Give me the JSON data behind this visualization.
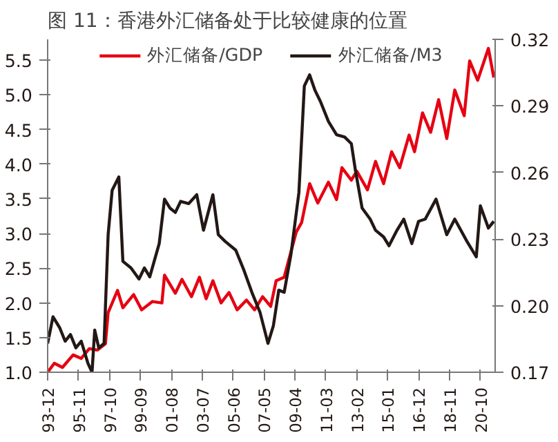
{
  "chart_data": {
    "type": "line",
    "title": "图 11：香港外汇储备处于比较健康的位置",
    "series": [
      {
        "name": "外汇储备/GDP",
        "color": "#e60012",
        "axis": "y",
        "x": [
          "1993-12",
          "1994-05",
          "1994-11",
          "1995-07",
          "1996-01",
          "1996-07",
          "1997-01",
          "1997-07",
          "1997-09",
          "1998-04",
          "1998-08",
          "1999-04",
          "1999-10",
          "2000-06",
          "2001-01",
          "2001-03",
          "2001-11",
          "2002-04",
          "2002-11",
          "2003-05",
          "2003-10",
          "2004-03",
          "2004-09",
          "2005-03",
          "2005-09",
          "2006-04",
          "2006-10",
          "2007-04",
          "2007-10",
          "2008-02",
          "2008-08",
          "2009-05",
          "2009-09",
          "2010-03",
          "2010-09",
          "2011-05",
          "2011-11",
          "2012-03",
          "2012-10",
          "2013-02",
          "2013-10",
          "2014-04",
          "2014-10",
          "2015-04",
          "2015-10",
          "2016-05",
          "2016-09",
          "2017-03",
          "2017-09",
          "2018-03",
          "2018-09",
          "2019-03",
          "2019-10",
          "2020-02",
          "2020-08",
          "2021-04",
          "2021-08"
        ],
        "values": [
          1.0,
          1.13,
          1.07,
          1.25,
          1.2,
          1.34,
          1.32,
          1.41,
          1.86,
          2.18,
          1.93,
          2.12,
          1.9,
          2.02,
          2.0,
          2.4,
          2.14,
          2.34,
          2.09,
          2.37,
          2.06,
          2.32,
          2.0,
          2.15,
          1.9,
          2.04,
          1.9,
          2.09,
          1.95,
          2.32,
          2.37,
          3.02,
          3.16,
          3.72,
          3.44,
          3.74,
          3.49,
          3.95,
          3.77,
          3.9,
          3.63,
          4.04,
          3.72,
          4.18,
          3.95,
          4.42,
          4.18,
          4.74,
          4.46,
          4.93,
          4.37,
          5.07,
          4.7,
          5.49,
          5.21,
          5.67,
          5.25
        ]
      },
      {
        "name": "外汇储备/M3",
        "color": "#231815",
        "axis": "y2",
        "x": [
          "1993-12",
          "1994-04",
          "1994-09",
          "1995-01",
          "1995-05",
          "1995-09",
          "1996-01",
          "1996-06",
          "1996-09",
          "1996-11",
          "1997-02",
          "1997-06",
          "1997-09",
          "1997-12",
          "1998-05",
          "1998-08",
          "1999-02",
          "1999-08",
          "1999-12",
          "2000-04",
          "2000-11",
          "2001-03",
          "2001-07",
          "2001-11",
          "2002-03",
          "2002-09",
          "2003-03",
          "2003-08",
          "2004-03",
          "2004-07",
          "2004-12",
          "2005-08",
          "2006-02",
          "2006-08",
          "2007-02",
          "2007-08",
          "2007-12",
          "2008-04",
          "2008-08",
          "2009-01",
          "2009-07",
          "2009-11",
          "2010-03",
          "2010-07",
          "2010-11",
          "2011-05",
          "2011-11",
          "2012-05",
          "2012-10",
          "2013-01",
          "2013-06",
          "2013-12",
          "2014-04",
          "2014-10",
          "2015-02",
          "2015-08",
          "2016-01",
          "2016-07",
          "2016-12",
          "2017-05",
          "2018-01",
          "2018-09",
          "2019-03",
          "2019-12",
          "2020-07",
          "2020-10",
          "2021-04",
          "2021-08"
        ],
        "values": [
          0.183,
          0.195,
          0.19,
          0.184,
          0.187,
          0.181,
          0.184,
          0.174,
          0.17,
          0.189,
          0.181,
          0.183,
          0.232,
          0.252,
          0.258,
          0.22,
          0.217,
          0.212,
          0.217,
          0.213,
          0.228,
          0.248,
          0.244,
          0.242,
          0.247,
          0.246,
          0.25,
          0.234,
          0.25,
          0.232,
          0.229,
          0.225,
          0.216,
          0.206,
          0.197,
          0.183,
          0.191,
          0.207,
          0.206,
          0.223,
          0.251,
          0.299,
          0.304,
          0.297,
          0.292,
          0.283,
          0.277,
          0.276,
          0.273,
          0.261,
          0.244,
          0.239,
          0.234,
          0.231,
          0.227,
          0.234,
          0.239,
          0.228,
          0.238,
          0.239,
          0.248,
          0.232,
          0.239,
          0.229,
          0.222,
          0.245,
          0.235,
          0.238
        ]
      }
    ],
    "xlim": [
      "1993-12",
      "2021-09"
    ],
    "xticks": [
      {
        "value": "1993-12",
        "label": "93-12"
      },
      {
        "value": "1995-11",
        "label": "95-11"
      },
      {
        "value": "1997-10",
        "label": "97-10"
      },
      {
        "value": "1999-09",
        "label": "99-09"
      },
      {
        "value": "2001-08",
        "label": "01-08"
      },
      {
        "value": "2003-07",
        "label": "03-07"
      },
      {
        "value": "2005-06",
        "label": "05-06"
      },
      {
        "value": "2007-05",
        "label": "07-05"
      },
      {
        "value": "2009-04",
        "label": "09-04"
      },
      {
        "value": "2011-03",
        "label": "11-03"
      },
      {
        "value": "2013-02",
        "label": "13-02"
      },
      {
        "value": "2015-01",
        "label": "15-01"
      },
      {
        "value": "2016-12",
        "label": "16-12"
      },
      {
        "value": "2018-11",
        "label": "18-11"
      },
      {
        "value": "2020-10",
        "label": "20-10"
      }
    ],
    "ylim": [
      1.0,
      5.8
    ],
    "yticks": [
      {
        "value": 1,
        "label": "1.0"
      },
      1.5,
      {
        "value": 2,
        "label": "2.0"
      },
      2.5,
      {
        "value": 3,
        "label": "3.0"
      },
      3.5,
      {
        "value": 4,
        "label": "4.0"
      },
      4.5,
      {
        "value": 5,
        "label": "5.0"
      },
      5.5
    ],
    "y2lim": [
      0.17,
      0.32
    ],
    "y2ticks": [
      0.17,
      {
        "value": 0.2,
        "label": "0.20"
      },
      0.23,
      0.26,
      0.29,
      0.32
    ],
    "grid": false,
    "legend": "top",
    "marker": "none",
    "line_style": "solid"
  }
}
